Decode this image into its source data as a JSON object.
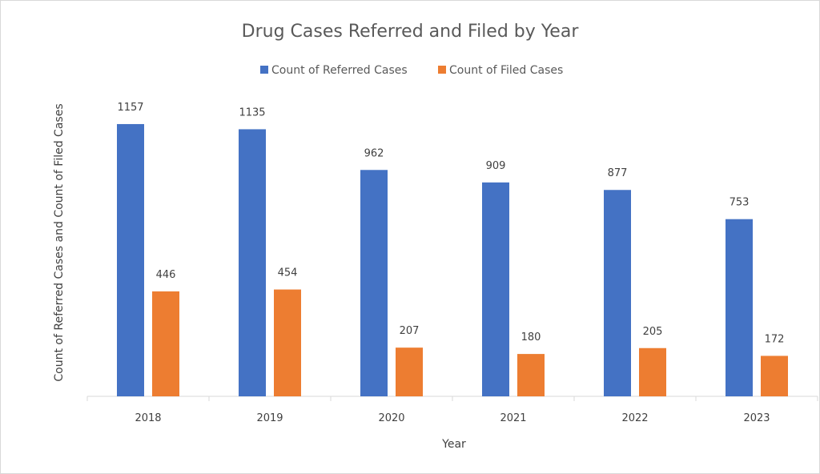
{
  "chart_data": {
    "type": "bar",
    "title": "Drug Cases Referred and Filed by Year",
    "xlabel": "Year",
    "ylabel": "Count of Referred Cases and Count of Filed Cases",
    "categories": [
      "2018",
      "2019",
      "2020",
      "2021",
      "2022",
      "2023"
    ],
    "series": [
      {
        "name": "Count of Referred Cases",
        "color": "#4472C4",
        "values": [
          1157,
          1135,
          962,
          909,
          877,
          753
        ]
      },
      {
        "name": "Count of Filed Cases",
        "color": "#ED7D31",
        "values": [
          446,
          454,
          207,
          180,
          205,
          172
        ]
      }
    ],
    "ylim": [
      0,
      1200
    ],
    "grid": false,
    "legend": "top-center",
    "data_labels": true
  }
}
